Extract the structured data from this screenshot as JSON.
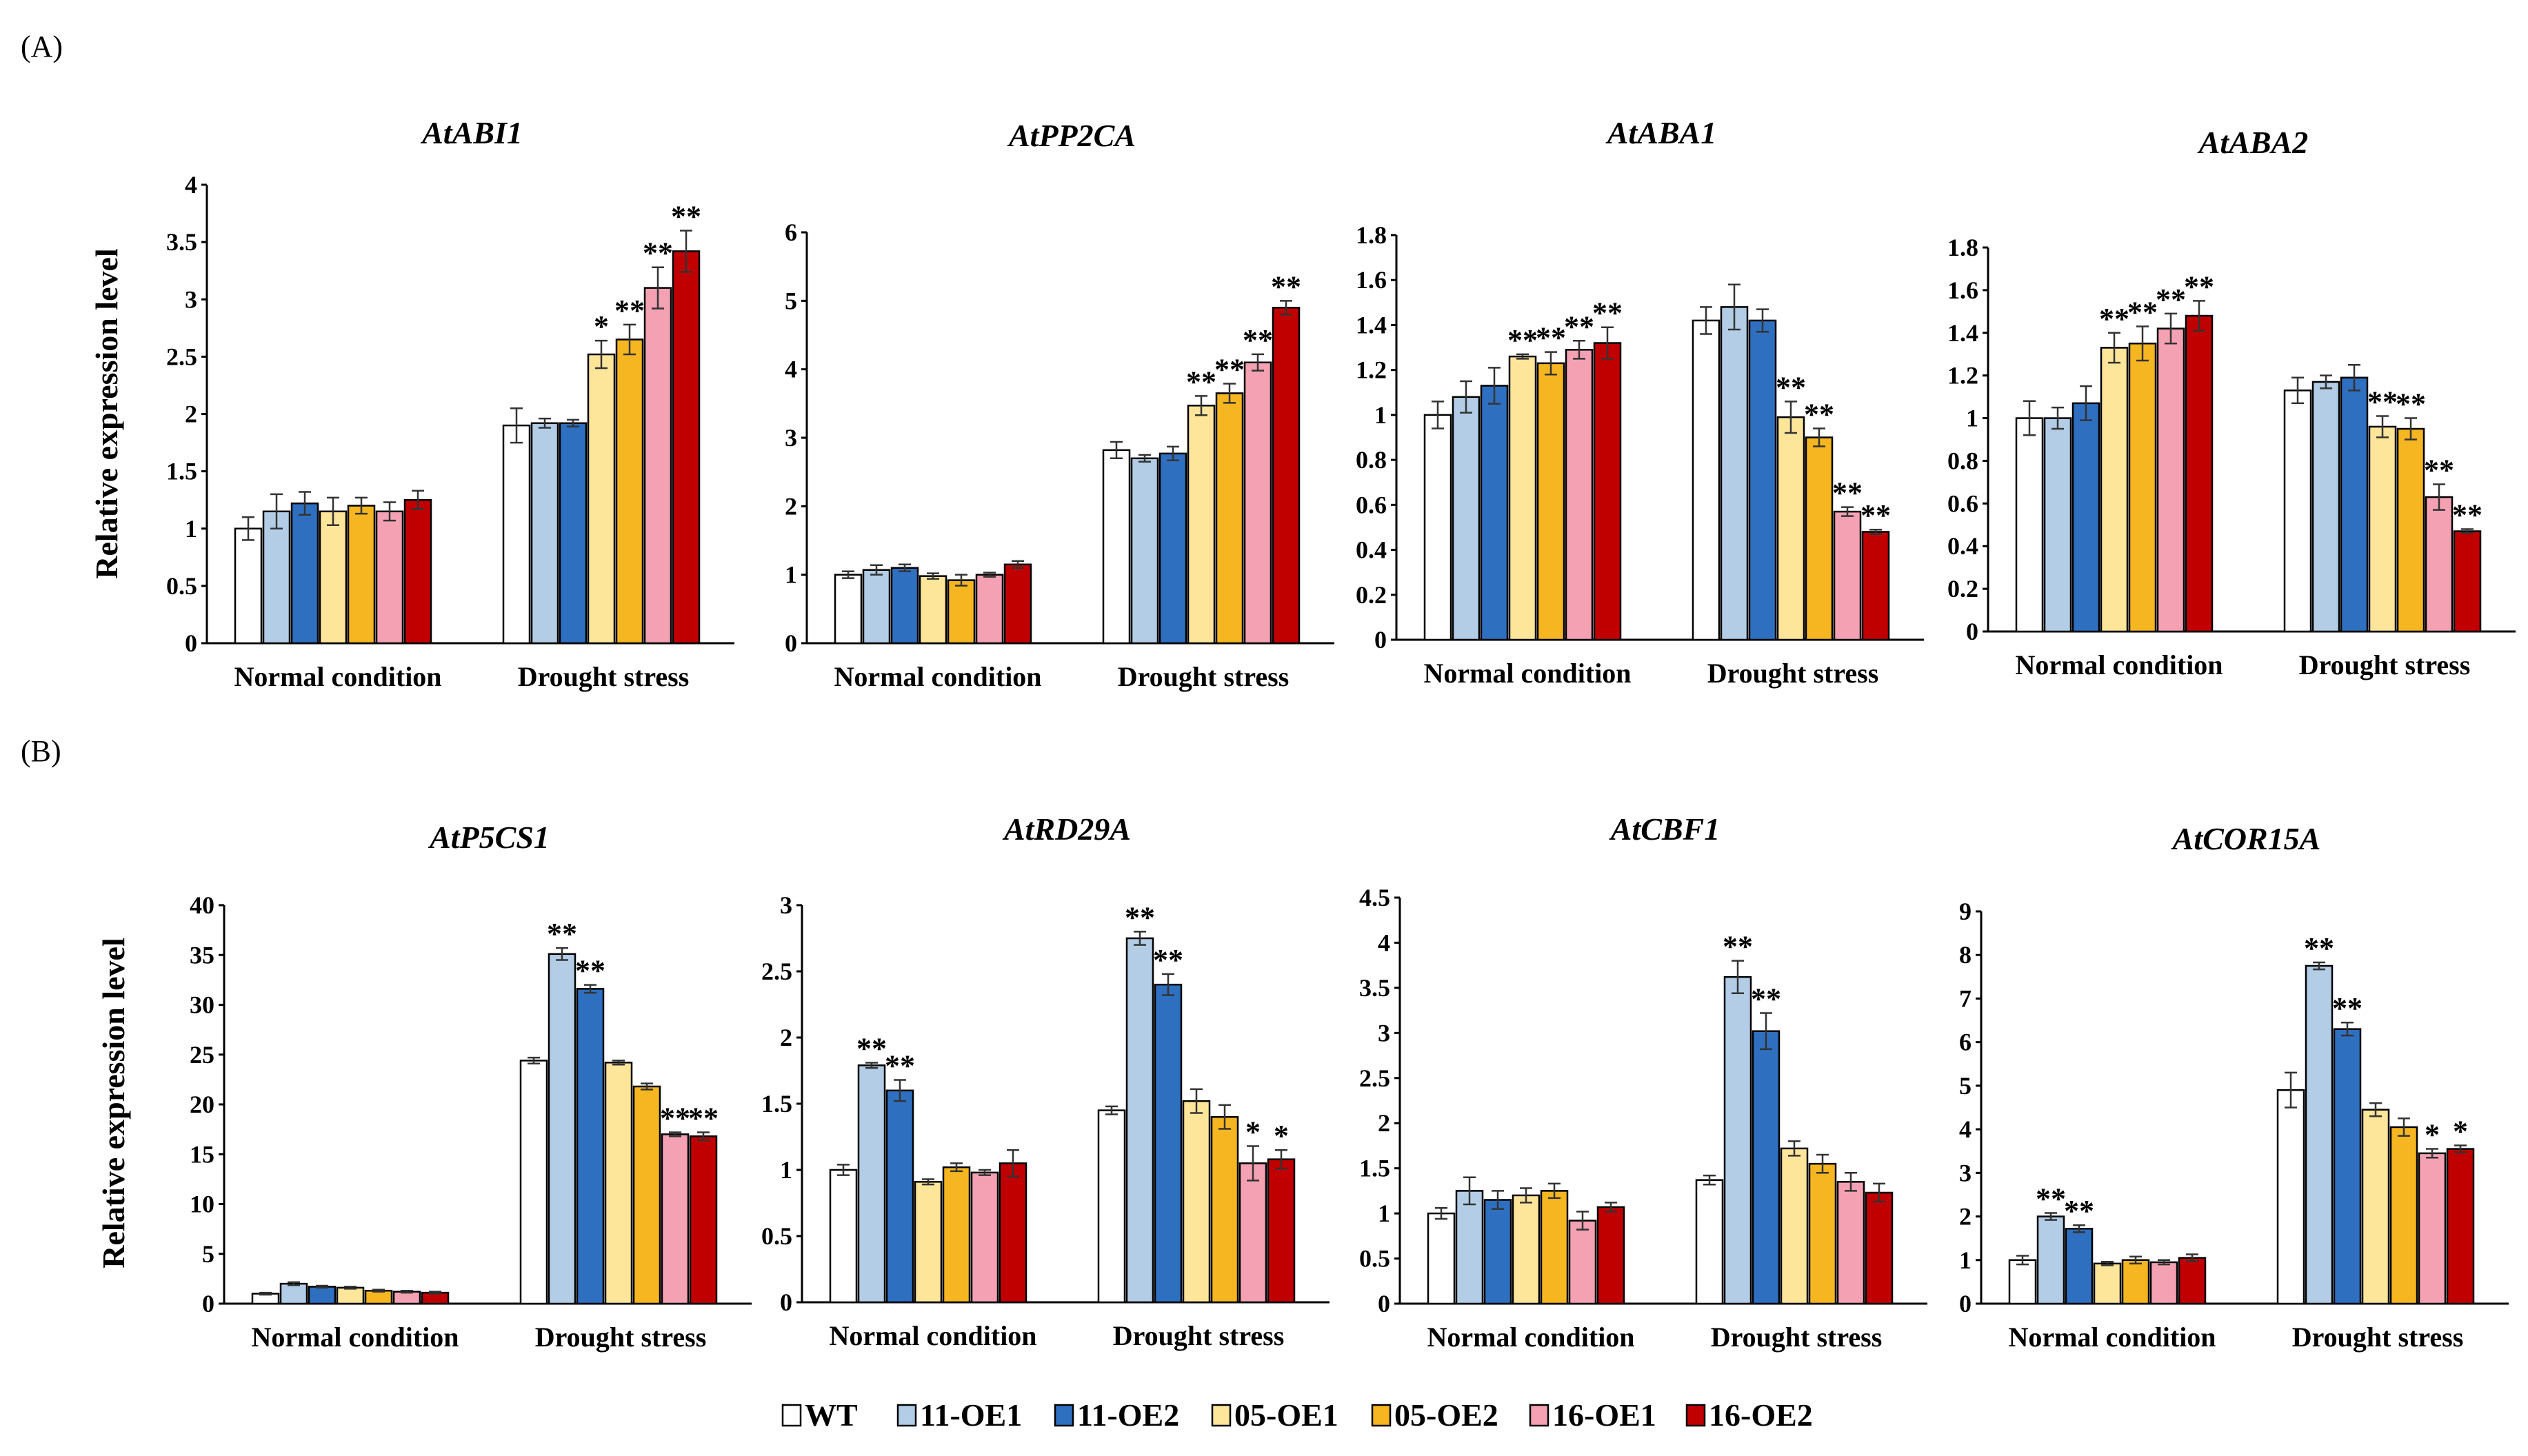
{
  "panels": [
    {
      "label": "(A)"
    },
    {
      "label": "(B)"
    }
  ],
  "y_axis_title": "Relative expression level",
  "legend": [
    {
      "name": "WT",
      "color": "#ffffff"
    },
    {
      "name": "11-OE1",
      "color": "#b3cde6"
    },
    {
      "name": "11-OE2",
      "color": "#2f6fc0"
    },
    {
      "name": "05-OE1",
      "color": "#fde59a"
    },
    {
      "name": "05-OE2",
      "color": "#f5b621"
    },
    {
      "name": "16-OE1",
      "color": "#f4a1b4"
    },
    {
      "name": "16-OE2",
      "color": "#c00000"
    }
  ],
  "chart_data": [
    {
      "type": "bar",
      "panel": "(A)",
      "title": "AtABI1",
      "categories": [
        "Normal condition",
        "Drought stress"
      ],
      "ylim": [
        0,
        4
      ],
      "yticks": [
        "0",
        "0.5",
        "1",
        "1.5",
        "2",
        "2.5",
        "3",
        "3.5",
        "4"
      ],
      "series": [
        {
          "name": "WT",
          "values": [
            1.0,
            1.9
          ],
          "errors": [
            0.1,
            0.15
          ],
          "sig": [
            "",
            ""
          ]
        },
        {
          "name": "11-OE1",
          "values": [
            1.15,
            1.92
          ],
          "errors": [
            0.15,
            0.04
          ],
          "sig": [
            "",
            ""
          ]
        },
        {
          "name": "11-OE2",
          "values": [
            1.22,
            1.92
          ],
          "errors": [
            0.1,
            0.03
          ],
          "sig": [
            "",
            ""
          ]
        },
        {
          "name": "05-OE1",
          "values": [
            1.15,
            2.52
          ],
          "errors": [
            0.12,
            0.12
          ],
          "sig": [
            "",
            "*"
          ]
        },
        {
          "name": "05-OE2",
          "values": [
            1.2,
            2.65
          ],
          "errors": [
            0.07,
            0.13
          ],
          "sig": [
            "",
            "**"
          ]
        },
        {
          "name": "16-OE1",
          "values": [
            1.15,
            3.1
          ],
          "errors": [
            0.08,
            0.18
          ],
          "sig": [
            "",
            "**"
          ]
        },
        {
          "name": "16-OE2",
          "values": [
            1.25,
            3.42
          ],
          "errors": [
            0.08,
            0.18
          ],
          "sig": [
            "",
            "**"
          ]
        }
      ]
    },
    {
      "type": "bar",
      "panel": "(A)",
      "title": "AtPP2CA",
      "categories": [
        "Normal condition",
        "Drought stress"
      ],
      "ylim": [
        0,
        6
      ],
      "yticks": [
        "0",
        "1",
        "2",
        "3",
        "4",
        "5",
        "6"
      ],
      "series": [
        {
          "name": "WT",
          "values": [
            1.0,
            2.82
          ],
          "errors": [
            0.05,
            0.12
          ],
          "sig": [
            "",
            ""
          ]
        },
        {
          "name": "11-OE1",
          "values": [
            1.07,
            2.7
          ],
          "errors": [
            0.07,
            0.05
          ],
          "sig": [
            "",
            ""
          ]
        },
        {
          "name": "11-OE2",
          "values": [
            1.1,
            2.77
          ],
          "errors": [
            0.05,
            0.1
          ],
          "sig": [
            "",
            ""
          ]
        },
        {
          "name": "05-OE1",
          "values": [
            0.98,
            3.47
          ],
          "errors": [
            0.04,
            0.14
          ],
          "sig": [
            "",
            "**"
          ]
        },
        {
          "name": "05-OE2",
          "values": [
            0.92,
            3.65
          ],
          "errors": [
            0.08,
            0.14
          ],
          "sig": [
            "",
            "**"
          ]
        },
        {
          "name": "16-OE1",
          "values": [
            1.0,
            4.1
          ],
          "errors": [
            0.03,
            0.12
          ],
          "sig": [
            "",
            "**"
          ]
        },
        {
          "name": "16-OE2",
          "values": [
            1.15,
            4.9
          ],
          "errors": [
            0.05,
            0.1
          ],
          "sig": [
            "",
            "**"
          ]
        }
      ]
    },
    {
      "type": "bar",
      "panel": "(A)",
      "title": "AtABA1",
      "categories": [
        "Normal condition",
        "Drought stress"
      ],
      "ylim": [
        0,
        1.8
      ],
      "yticks": [
        "0",
        "0.2",
        "0.4",
        "0.6",
        "0.8",
        "1",
        "1.2",
        "1.4",
        "1.6",
        "1.8"
      ],
      "series": [
        {
          "name": "WT",
          "values": [
            1.0,
            1.42
          ],
          "errors": [
            0.06,
            0.06
          ],
          "sig": [
            "",
            ""
          ]
        },
        {
          "name": "11-OE1",
          "values": [
            1.08,
            1.48
          ],
          "errors": [
            0.07,
            0.1
          ],
          "sig": [
            "",
            ""
          ]
        },
        {
          "name": "11-OE2",
          "values": [
            1.13,
            1.42
          ],
          "errors": [
            0.08,
            0.05
          ],
          "sig": [
            "",
            ""
          ]
        },
        {
          "name": "05-OE1",
          "values": [
            1.26,
            0.99
          ],
          "errors": [
            0.01,
            0.07
          ],
          "sig": [
            "**",
            "**"
          ]
        },
        {
          "name": "05-OE2",
          "values": [
            1.23,
            0.9
          ],
          "errors": [
            0.05,
            0.04
          ],
          "sig": [
            "**",
            "**"
          ]
        },
        {
          "name": "16-OE1",
          "values": [
            1.29,
            0.57
          ],
          "errors": [
            0.04,
            0.02
          ],
          "sig": [
            "**",
            "**"
          ]
        },
        {
          "name": "16-OE2",
          "values": [
            1.32,
            0.48
          ],
          "errors": [
            0.07,
            0.01
          ],
          "sig": [
            "**",
            "**"
          ]
        }
      ]
    },
    {
      "type": "bar",
      "panel": "(A)",
      "title": "AtABA2",
      "categories": [
        "Normal condition",
        "Drought stress"
      ],
      "ylim": [
        0,
        1.8
      ],
      "yticks": [
        "0",
        "0.2",
        "0.4",
        "0.6",
        "0.8",
        "1",
        "1.2",
        "1.4",
        "1.6",
        "1.8"
      ],
      "series": [
        {
          "name": "WT",
          "values": [
            1.0,
            1.13
          ],
          "errors": [
            0.08,
            0.06
          ],
          "sig": [
            "",
            ""
          ]
        },
        {
          "name": "11-OE1",
          "values": [
            1.0,
            1.17
          ],
          "errors": [
            0.05,
            0.03
          ],
          "sig": [
            "",
            ""
          ]
        },
        {
          "name": "11-OE2",
          "values": [
            1.07,
            1.19
          ],
          "errors": [
            0.08,
            0.06
          ],
          "sig": [
            "",
            ""
          ]
        },
        {
          "name": "05-OE1",
          "values": [
            1.33,
            0.96
          ],
          "errors": [
            0.07,
            0.05
          ],
          "sig": [
            "**",
            "**"
          ]
        },
        {
          "name": "05-OE2",
          "values": [
            1.35,
            0.95
          ],
          "errors": [
            0.08,
            0.05
          ],
          "sig": [
            "**",
            "**"
          ]
        },
        {
          "name": "16-OE1",
          "values": [
            1.42,
            0.63
          ],
          "errors": [
            0.07,
            0.06
          ],
          "sig": [
            "**",
            "**"
          ]
        },
        {
          "name": "16-OE2",
          "values": [
            1.48,
            0.47
          ],
          "errors": [
            0.07,
            0.01
          ],
          "sig": [
            "**",
            "**"
          ]
        }
      ]
    },
    {
      "type": "bar",
      "panel": "(B)",
      "title": "AtP5CS1",
      "categories": [
        "Normal condition",
        "Drought stress"
      ],
      "ylim": [
        0,
        40
      ],
      "yticks": [
        "0",
        "5",
        "10",
        "15",
        "20",
        "25",
        "30",
        "35",
        "40"
      ],
      "series": [
        {
          "name": "WT",
          "values": [
            1.0,
            24.4
          ],
          "errors": [
            0.1,
            0.3
          ],
          "sig": [
            "",
            ""
          ]
        },
        {
          "name": "11-OE1",
          "values": [
            2.0,
            35.1
          ],
          "errors": [
            0.15,
            0.6
          ],
          "sig": [
            "",
            "**"
          ]
        },
        {
          "name": "11-OE2",
          "values": [
            1.7,
            31.6
          ],
          "errors": [
            0.1,
            0.4
          ],
          "sig": [
            "",
            "**"
          ]
        },
        {
          "name": "05-OE1",
          "values": [
            1.6,
            24.2
          ],
          "errors": [
            0.1,
            0.2
          ],
          "sig": [
            "",
            ""
          ]
        },
        {
          "name": "05-OE2",
          "values": [
            1.3,
            21.8
          ],
          "errors": [
            0.1,
            0.3
          ],
          "sig": [
            "",
            ""
          ]
        },
        {
          "name": "16-OE1",
          "values": [
            1.2,
            17.0
          ],
          "errors": [
            0.1,
            0.2
          ],
          "sig": [
            "",
            "**"
          ]
        },
        {
          "name": "16-OE2",
          "values": [
            1.1,
            16.8
          ],
          "errors": [
            0.1,
            0.4
          ],
          "sig": [
            "",
            "**"
          ]
        }
      ]
    },
    {
      "type": "bar",
      "panel": "(B)",
      "title": "AtRD29A",
      "categories": [
        "Normal condition",
        "Drought stress"
      ],
      "ylim": [
        0,
        3
      ],
      "yticks": [
        "0",
        "0.5",
        "1",
        "1.5",
        "2",
        "2.5",
        "3"
      ],
      "series": [
        {
          "name": "WT",
          "values": [
            1.0,
            1.45
          ],
          "errors": [
            0.04,
            0.03
          ],
          "sig": [
            "",
            ""
          ]
        },
        {
          "name": "11-OE1",
          "values": [
            1.79,
            2.75
          ],
          "errors": [
            0.02,
            0.05
          ],
          "sig": [
            "**",
            "**"
          ]
        },
        {
          "name": "11-OE2",
          "values": [
            1.6,
            2.4
          ],
          "errors": [
            0.08,
            0.08
          ],
          "sig": [
            "**",
            "**"
          ]
        },
        {
          "name": "05-OE1",
          "values": [
            0.91,
            1.52
          ],
          "errors": [
            0.02,
            0.09
          ],
          "sig": [
            "",
            ""
          ]
        },
        {
          "name": "05-OE2",
          "values": [
            1.02,
            1.4
          ],
          "errors": [
            0.03,
            0.09
          ],
          "sig": [
            "",
            ""
          ]
        },
        {
          "name": "16-OE1",
          "values": [
            0.98,
            1.05
          ],
          "errors": [
            0.02,
            0.13
          ],
          "sig": [
            "",
            "*"
          ]
        },
        {
          "name": "16-OE2",
          "values": [
            1.05,
            1.08
          ],
          "errors": [
            0.1,
            0.07
          ],
          "sig": [
            "",
            "*"
          ]
        }
      ]
    },
    {
      "type": "bar",
      "panel": "(B)",
      "title": "AtCBF1",
      "categories": [
        "Normal condition",
        "Drought stress"
      ],
      "ylim": [
        0,
        4.5
      ],
      "yticks": [
        "0",
        "0.5",
        "1",
        "1.5",
        "2",
        "2.5",
        "3",
        "3.5",
        "4",
        "4.5"
      ],
      "series": [
        {
          "name": "WT",
          "values": [
            1.0,
            1.37
          ],
          "errors": [
            0.06,
            0.05
          ],
          "sig": [
            "",
            ""
          ]
        },
        {
          "name": "11-OE1",
          "values": [
            1.25,
            3.62
          ],
          "errors": [
            0.15,
            0.18
          ],
          "sig": [
            "",
            "**"
          ]
        },
        {
          "name": "11-OE2",
          "values": [
            1.15,
            3.02
          ],
          "errors": [
            0.1,
            0.2
          ],
          "sig": [
            "",
            "**"
          ]
        },
        {
          "name": "05-OE1",
          "values": [
            1.2,
            1.72
          ],
          "errors": [
            0.08,
            0.08
          ],
          "sig": [
            "",
            ""
          ]
        },
        {
          "name": "05-OE2",
          "values": [
            1.25,
            1.55
          ],
          "errors": [
            0.08,
            0.1
          ],
          "sig": [
            "",
            ""
          ]
        },
        {
          "name": "16-OE1",
          "values": [
            0.92,
            1.35
          ],
          "errors": [
            0.1,
            0.1
          ],
          "sig": [
            "",
            ""
          ]
        },
        {
          "name": "16-OE2",
          "values": [
            1.07,
            1.23
          ],
          "errors": [
            0.05,
            0.1
          ],
          "sig": [
            "",
            ""
          ]
        }
      ]
    },
    {
      "type": "bar",
      "panel": "(B)",
      "title": "AtCOR15A",
      "categories": [
        "Normal condition",
        "Drought stress"
      ],
      "ylim": [
        0,
        9
      ],
      "yticks": [
        "0",
        "1",
        "2",
        "3",
        "4",
        "5",
        "6",
        "7",
        "8",
        "9"
      ],
      "series": [
        {
          "name": "WT",
          "values": [
            1.0,
            4.9
          ],
          "errors": [
            0.1,
            0.4
          ],
          "sig": [
            "",
            ""
          ]
        },
        {
          "name": "11-OE1",
          "values": [
            2.0,
            7.75
          ],
          "errors": [
            0.08,
            0.08
          ],
          "sig": [
            "**",
            "**"
          ]
        },
        {
          "name": "11-OE2",
          "values": [
            1.72,
            6.3
          ],
          "errors": [
            0.08,
            0.15
          ],
          "sig": [
            "**",
            "**"
          ]
        },
        {
          "name": "05-OE1",
          "values": [
            0.92,
            4.45
          ],
          "errors": [
            0.04,
            0.15
          ],
          "sig": [
            "",
            ""
          ]
        },
        {
          "name": "05-OE2",
          "values": [
            1.0,
            4.05
          ],
          "errors": [
            0.08,
            0.2
          ],
          "sig": [
            "",
            ""
          ]
        },
        {
          "name": "16-OE1",
          "values": [
            0.95,
            3.45
          ],
          "errors": [
            0.05,
            0.1
          ],
          "sig": [
            "",
            "*"
          ]
        },
        {
          "name": "16-OE2",
          "values": [
            1.05,
            3.55
          ],
          "errors": [
            0.08,
            0.08
          ],
          "sig": [
            "",
            "*"
          ]
        }
      ]
    }
  ]
}
